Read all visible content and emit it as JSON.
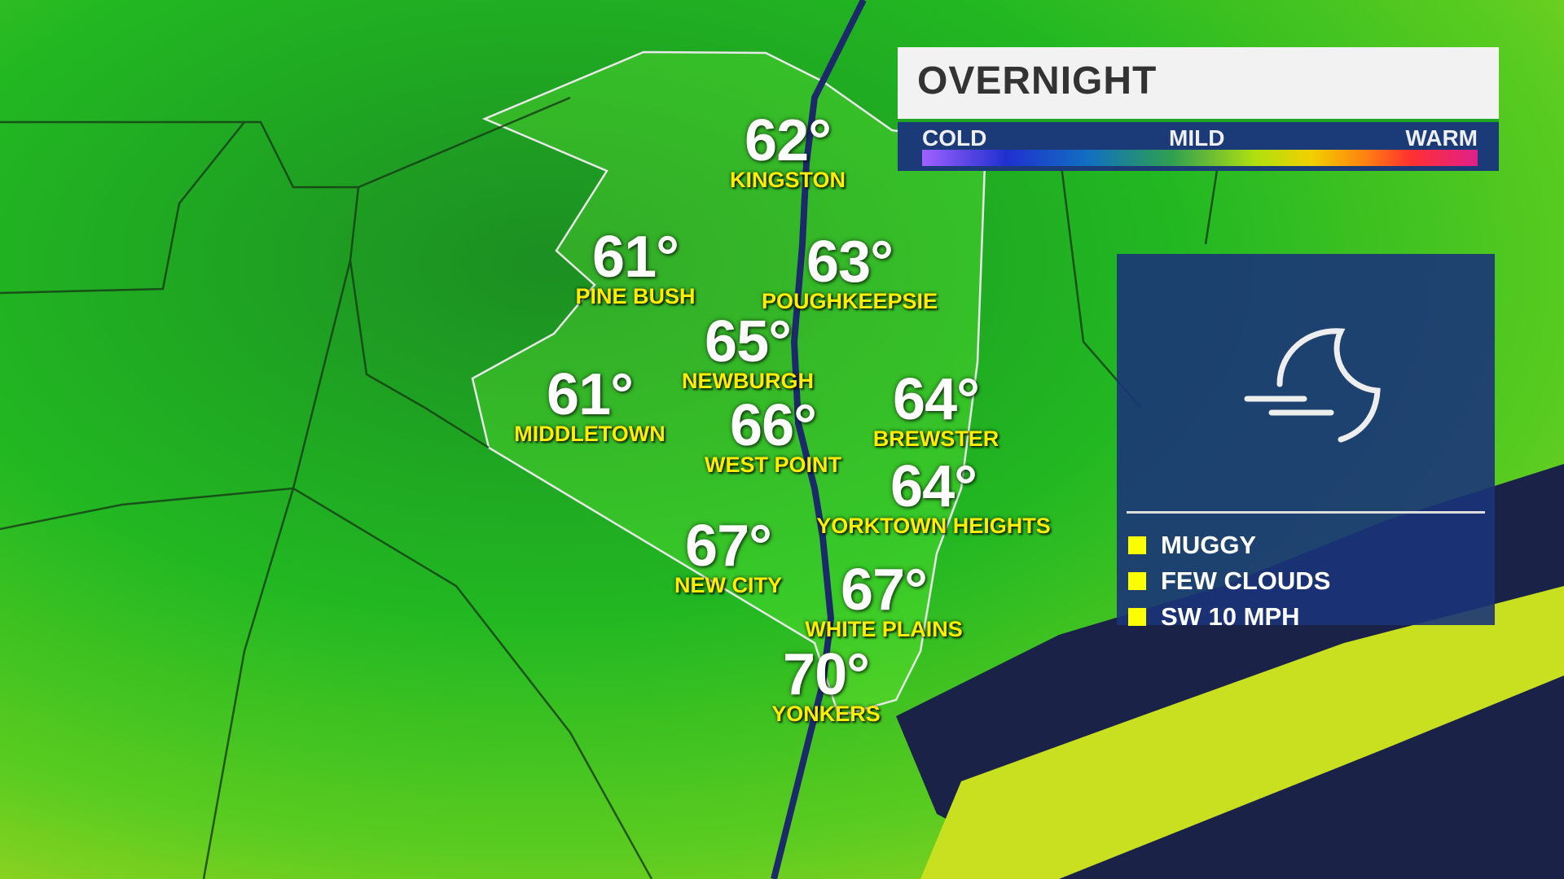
{
  "header": {
    "title": "OVERNIGHT"
  },
  "scale": {
    "cold": "COLD",
    "mild": "MILD",
    "warm": "WARM"
  },
  "cities": [
    {
      "temp": "62°",
      "name": "KINGSTON"
    },
    {
      "temp": "61°",
      "name": "PINE BUSH"
    },
    {
      "temp": "63°",
      "name": "POUGHKEEPSIE"
    },
    {
      "temp": "65°",
      "name": "NEWBURGH"
    },
    {
      "temp": "61°",
      "name": "MIDDLETOWN"
    },
    {
      "temp": "64°",
      "name": "BREWSTER"
    },
    {
      "temp": "66°",
      "name": "WEST POINT"
    },
    {
      "temp": "64°",
      "name": "YORKTOWN HEIGHTS"
    },
    {
      "temp": "67°",
      "name": "NEW CITY"
    },
    {
      "temp": "67°",
      "name": "WHITE PLAINS"
    },
    {
      "temp": "70°",
      "name": "YONKERS"
    }
  ],
  "panel": {
    "icon": "moon-wind-icon",
    "conditions": [
      "MUGGY",
      "FEW CLOUDS",
      "SW 10 MPH"
    ]
  },
  "colors": {
    "bullet": "#ffff00",
    "label": "#ffee00",
    "panel": "#1b3478"
  }
}
